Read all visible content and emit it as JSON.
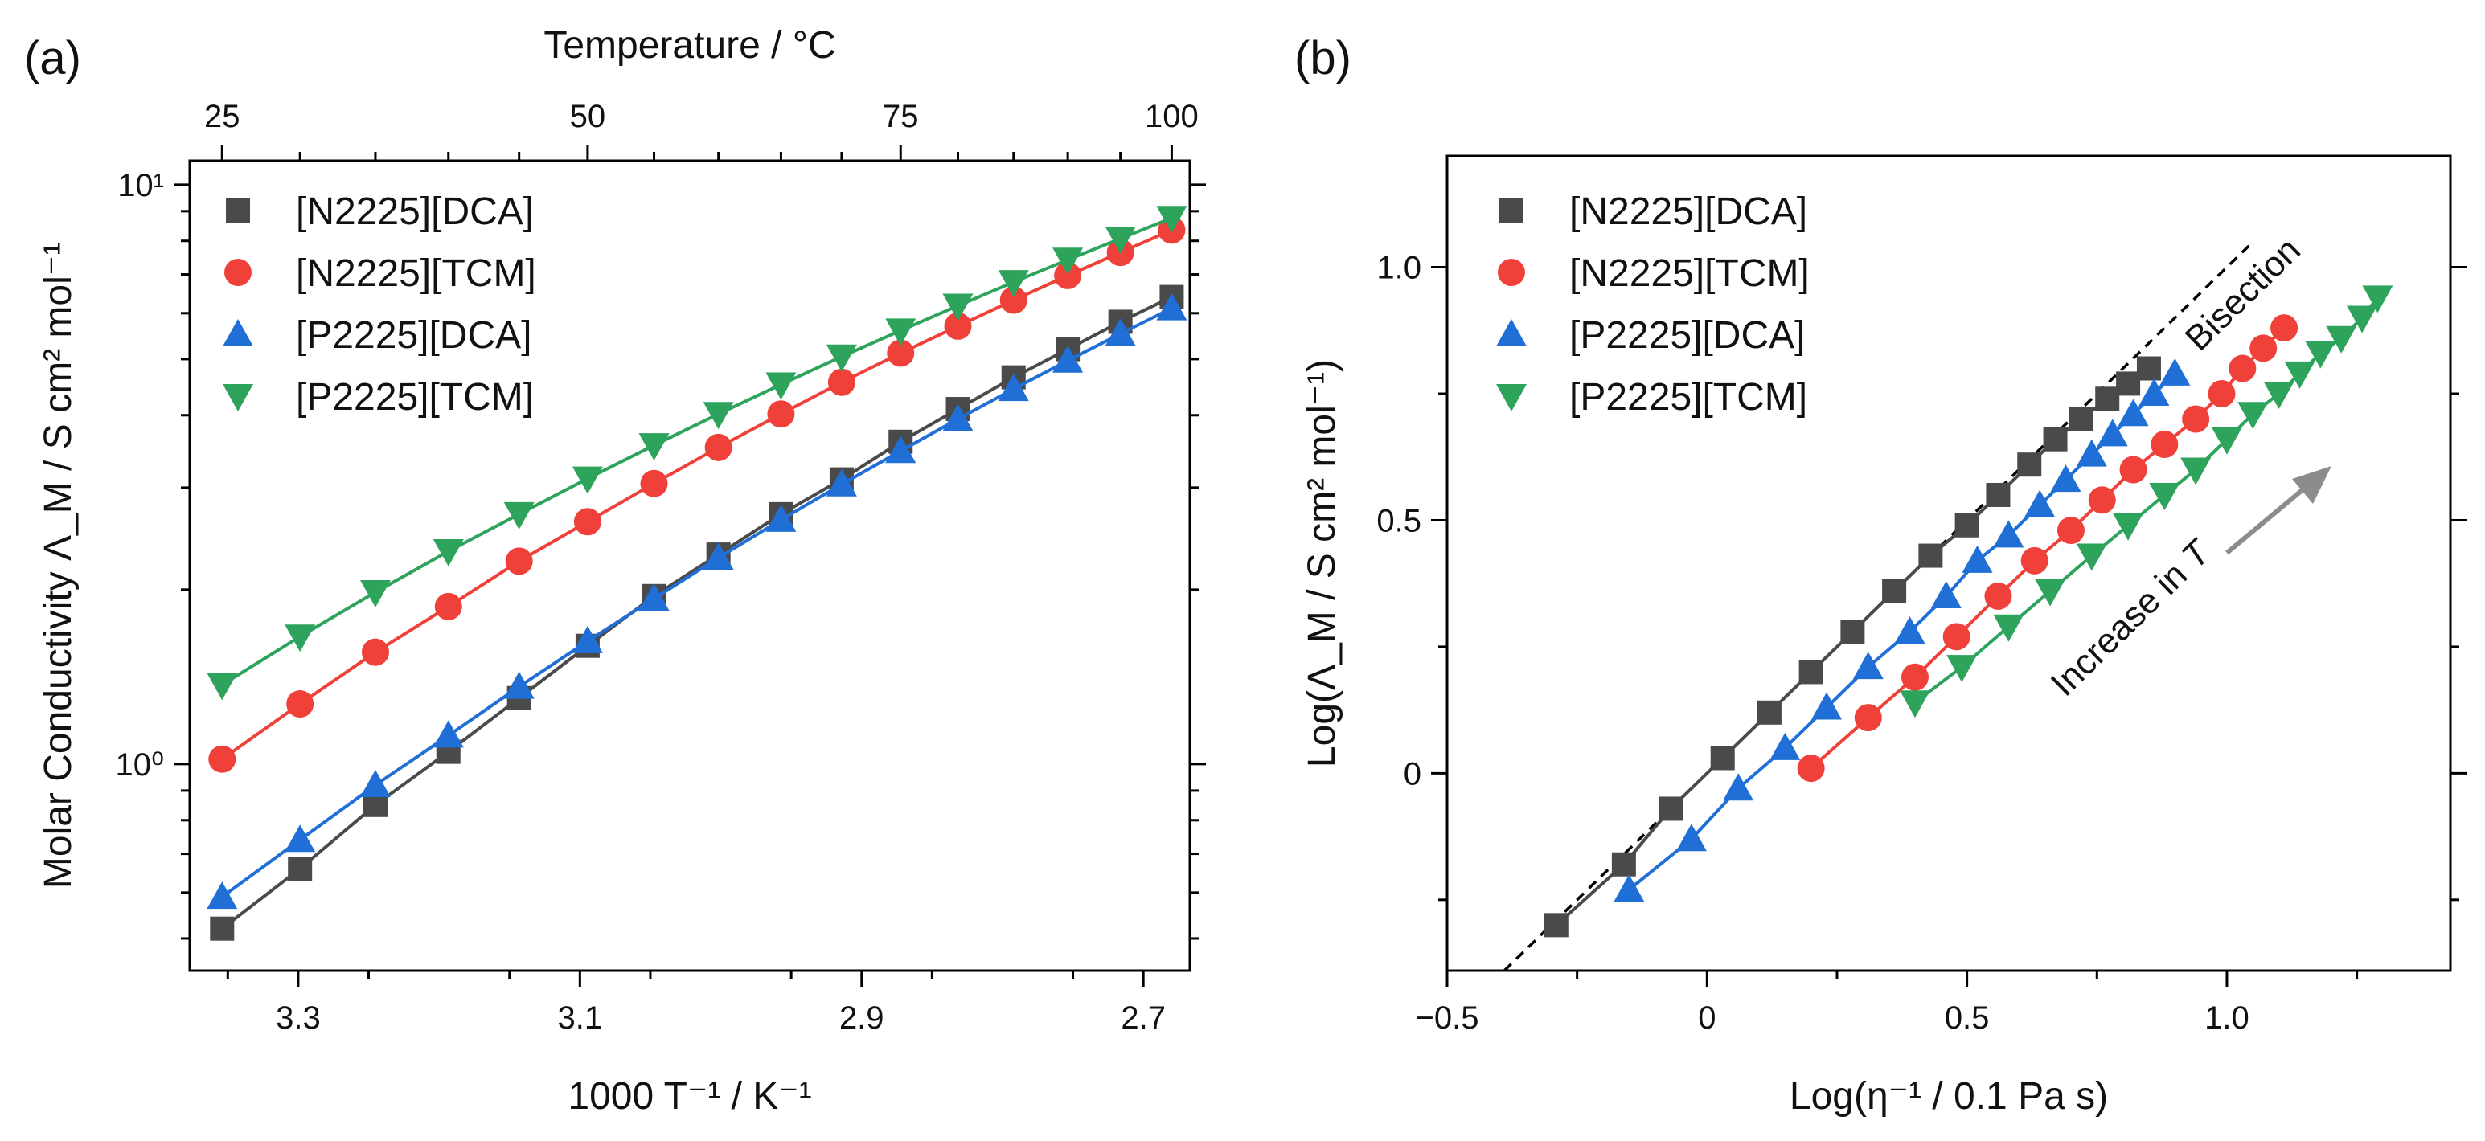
{
  "chart_data": [
    {
      "panel": "(a)",
      "type": "scatter",
      "xlabel": "1000 T⁻¹ / K⁻¹",
      "ylabel": "Molar Conductivity Λ_M / S cm² mol⁻¹",
      "top_axis_title": "Temperature / °C",
      "y_scale": "log",
      "xlim": [
        3.377,
        2.667
      ],
      "ylim": [
        0.44,
        11.0
      ],
      "x_ticks": [
        3.3,
        3.1,
        2.9,
        2.7
      ],
      "x_tick_labels": [
        "3.3",
        "3.1",
        "2.9",
        "2.7"
      ],
      "y_ticks": [
        1,
        10
      ],
      "y_tick_labels": [
        "10⁰",
        "10¹"
      ],
      "top_ticks": [
        25,
        50,
        75,
        100
      ],
      "top_tick_labels": [
        "25",
        "50",
        "75",
        "100"
      ],
      "temperatures_C": [
        25,
        30,
        35,
        40,
        45,
        50,
        55,
        60,
        65,
        70,
        75,
        80,
        85,
        90,
        95,
        100
      ],
      "legend_position": "top-left",
      "series": [
        {
          "name": "[N2225][DCA]",
          "marker": "square",
          "color": "#4a4a4a",
          "values": [
            0.52,
            0.66,
            0.85,
            1.05,
            1.3,
            1.6,
            1.95,
            2.3,
            2.7,
            3.1,
            3.6,
            4.1,
            4.65,
            5.2,
            5.8,
            6.4
          ]
        },
        {
          "name": "[N2225][TCM]",
          "marker": "circle",
          "color": "#f0403a",
          "values": [
            1.02,
            1.27,
            1.56,
            1.87,
            2.24,
            2.62,
            3.05,
            3.52,
            4.02,
            4.56,
            5.12,
            5.7,
            6.32,
            6.97,
            7.64,
            8.35
          ]
        },
        {
          "name": "[P2225][DCA]",
          "marker": "triangle-up",
          "color": "#1f6fd6",
          "values": [
            0.59,
            0.74,
            0.92,
            1.12,
            1.36,
            1.63,
            1.93,
            2.27,
            2.64,
            3.04,
            3.47,
            3.94,
            4.44,
            4.97,
            5.53,
            6.12
          ]
        },
        {
          "name": "[P2225][TCM]",
          "marker": "triangle-down",
          "color": "#2ea35c",
          "values": [
            1.37,
            1.66,
            1.98,
            2.33,
            2.7,
            3.11,
            3.55,
            4.02,
            4.52,
            5.05,
            5.6,
            6.18,
            6.79,
            7.42,
            8.07,
            8.76
          ]
        }
      ]
    },
    {
      "panel": "(b)",
      "type": "scatter",
      "xlabel": "Log(η⁻¹ / 0.1 Pa s)",
      "ylabel": "Log(Λ_M / S cm² mol⁻¹)",
      "xlim": [
        -0.5,
        1.43
      ],
      "ylim": [
        -0.39,
        1.22
      ],
      "x_ticks": [
        -0.5,
        0,
        0.5,
        1.0
      ],
      "x_tick_labels": [
        "−0.5",
        "0",
        "0.5",
        "1.0"
      ],
      "y_ticks": [
        0,
        0.5,
        1.0
      ],
      "y_tick_labels": [
        "0",
        "0.5",
        "1.0"
      ],
      "legend_position": "top-left",
      "reference_line": {
        "label": "Bisection",
        "slope": 1,
        "intercept": 0,
        "style": "dashed"
      },
      "annotation": {
        "text": "Increase in ",
        "italic_text": "T"
      },
      "series": [
        {
          "name": "[N2225][DCA]",
          "marker": "square",
          "color": "#4a4a4a",
          "x": [
            -0.29,
            -0.16,
            -0.07,
            0.03,
            0.12,
            0.2,
            0.28,
            0.36,
            0.43,
            0.5,
            0.56,
            0.62,
            0.67,
            0.72,
            0.77,
            0.81,
            0.85
          ],
          "y": [
            -0.3,
            -0.18,
            -0.07,
            0.03,
            0.12,
            0.2,
            0.28,
            0.36,
            0.43,
            0.49,
            0.55,
            0.61,
            0.66,
            0.7,
            0.74,
            0.77,
            0.8
          ]
        },
        {
          "name": "[N2225][TCM]",
          "marker": "circle",
          "color": "#f0403a",
          "x": [
            0.2,
            0.31,
            0.4,
            0.48,
            0.56,
            0.63,
            0.7,
            0.76,
            0.82,
            0.88,
            0.94,
            0.99,
            1.03,
            1.07,
            1.11
          ],
          "y": [
            0.01,
            0.11,
            0.19,
            0.27,
            0.35,
            0.42,
            0.48,
            0.54,
            0.6,
            0.65,
            0.7,
            0.75,
            0.8,
            0.84,
            0.88
          ]
        },
        {
          "name": "[P2225][DCA]",
          "marker": "triangle-up",
          "color": "#1f6fd6",
          "x": [
            -0.15,
            -0.03,
            0.06,
            0.15,
            0.23,
            0.31,
            0.39,
            0.46,
            0.52,
            0.58,
            0.64,
            0.69,
            0.74,
            0.78,
            0.82,
            0.86,
            0.9
          ],
          "y": [
            -0.23,
            -0.13,
            -0.03,
            0.05,
            0.13,
            0.21,
            0.28,
            0.35,
            0.42,
            0.47,
            0.53,
            0.58,
            0.63,
            0.67,
            0.71,
            0.75,
            0.79
          ]
        },
        {
          "name": "[P2225][TCM]",
          "marker": "triangle-down",
          "color": "#2ea35c",
          "x": [
            0.4,
            0.49,
            0.58,
            0.66,
            0.74,
            0.81,
            0.88,
            0.94,
            1.0,
            1.05,
            1.1,
            1.14,
            1.18,
            1.22,
            1.26,
            1.29
          ],
          "y": [
            0.14,
            0.21,
            0.29,
            0.36,
            0.43,
            0.49,
            0.55,
            0.6,
            0.66,
            0.71,
            0.75,
            0.79,
            0.83,
            0.86,
            0.9,
            0.94
          ]
        }
      ]
    }
  ]
}
